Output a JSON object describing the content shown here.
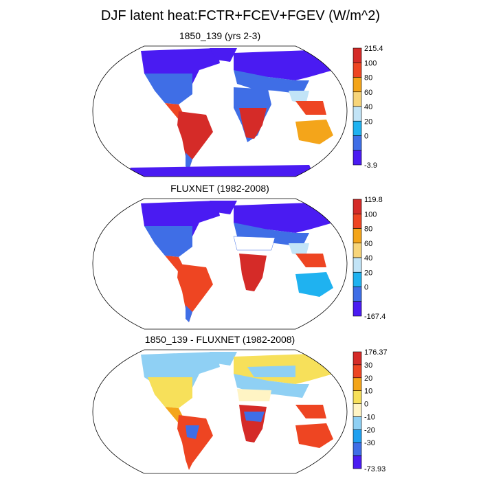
{
  "main_title": "DJF latent heat:FCTR+FCEV+FGEV (W/m^2)",
  "colors": {
    "abs": [
      "#4a1bf2",
      "#3f6ee6",
      "#1fb2f0",
      "#c2e4f7",
      "#f7d57a",
      "#f4a51a",
      "#ee4522",
      "#d52b28"
    ],
    "diff": [
      "#4a1bf2",
      "#3f6ee6",
      "#1fa0f0",
      "#8fd0f4",
      "#fff4c4",
      "#f7e05a",
      "#f4a51a",
      "#ee4522",
      "#d52b28"
    ]
  },
  "panels": [
    {
      "title": "1850_139 (yrs 2-3)",
      "colorbar_labels": [
        "215.4",
        "100",
        "80",
        "60",
        "40",
        "20",
        "0",
        "-3.9"
      ],
      "palette": "abs"
    },
    {
      "title": "FLUXNET (1982-2008)",
      "colorbar_labels": [
        "119.8",
        "100",
        "80",
        "60",
        "40",
        "20",
        "0",
        "-167.4"
      ],
      "palette": "abs"
    },
    {
      "title": "1850_139 - FLUXNET (1982-2008)",
      "colorbar_labels": [
        "176.37",
        "30",
        "20",
        "10",
        "0",
        "-10",
        "-20",
        "-30",
        "-73.93"
      ],
      "palette": "diff"
    }
  ]
}
